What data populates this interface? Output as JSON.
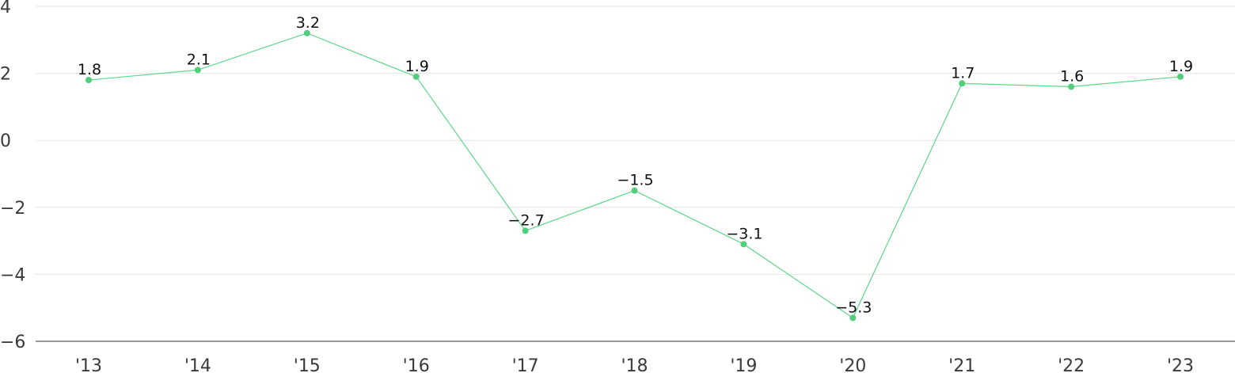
{
  "chart_data": {
    "type": "line",
    "categories": [
      "'13",
      "'14",
      "'15",
      "'16",
      "'17",
      "'18",
      "'19",
      "'20",
      "'21",
      "'22",
      "'23"
    ],
    "series": [
      {
        "values": [
          1.8,
          2.1,
          3.2,
          1.9,
          -2.7,
          -1.5,
          -3.1,
          -5.3,
          1.7,
          1.6,
          1.9
        ]
      }
    ],
    "data_labels": [
      "1.8",
      "2.1",
      "3.2",
      "1.9",
      "−2.7",
      "−1.5",
      "−3.1",
      "−5.3",
      "1.7",
      "1.6",
      "1.9"
    ],
    "y_ticks": [
      4,
      2,
      0,
      -2,
      -4,
      -6
    ],
    "y_tick_labels": [
      "4",
      "2",
      "0",
      "−2",
      "−4",
      "−6"
    ],
    "ylim": [
      -6,
      4
    ],
    "title": "",
    "xlabel": "",
    "ylabel": "",
    "grid": true,
    "legend": "none",
    "colors": {
      "line": "#5dd88a",
      "marker": "#4fcf7c",
      "grid": "#e6e6e6",
      "axis": "#333333"
    }
  }
}
